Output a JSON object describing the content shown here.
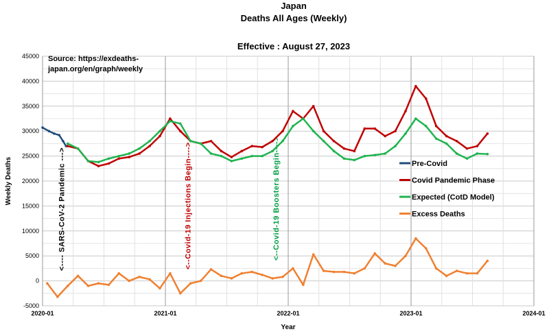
{
  "chart_data": {
    "type": "line",
    "title": "Japan",
    "subtitle": "Deaths All Ages (Weekly)",
    "annotation_effective": "Effective : August 27, 2023",
    "source_line1": "Source: https://exdeaths-",
    "source_line2": "japan.org/en/graph/weekly",
    "xlabel": "Year",
    "ylabel": "Weekly Deaths",
    "xlim": [
      "2020-01",
      "2024-01"
    ],
    "ylim": [
      -5000,
      45000
    ],
    "xticks": [
      "2020-01",
      "2021-01",
      "2022-01",
      "2023-01",
      "2024-01"
    ],
    "yticks": [
      -5000,
      0,
      5000,
      10000,
      15000,
      20000,
      25000,
      30000,
      35000,
      40000,
      45000
    ],
    "grid": true,
    "legend_position": "center-right",
    "event_labels": [
      {
        "text": "<---- SARS-CoV-2 Pandemic --->",
        "date": "2020-03",
        "color": "#000000"
      },
      {
        "text": "<--Covid-19 Injections Begin---->",
        "date": "2021-03",
        "color": "#c00000"
      },
      {
        "text": "<--Covid-19 Boosters Begin---->",
        "date": "2021-12",
        "color": "#00a040"
      }
    ],
    "series": [
      {
        "name": "Pre-Covid",
        "color": "#1f4e79",
        "x": [
          "2020-01-01",
          "2020-01-20",
          "2020-02-05",
          "2020-02-20",
          "2020-03-01",
          "2020-03-10"
        ],
        "values": [
          30700,
          30000,
          29500,
          29200,
          28000,
          27000
        ]
      },
      {
        "name": "Covid Pandemic Phase",
        "color": "#c00000",
        "x": [
          "2020-03",
          "2020-04",
          "2020-05",
          "2020-06",
          "2020-07",
          "2020-08",
          "2020-09",
          "2020-10",
          "2020-11",
          "2020-12",
          "2021-01",
          "2021-02",
          "2021-03",
          "2021-04",
          "2021-05",
          "2021-06",
          "2021-07",
          "2021-08",
          "2021-09",
          "2021-10",
          "2021-11",
          "2021-12",
          "2022-01",
          "2022-02",
          "2022-03",
          "2022-04",
          "2022-05",
          "2022-06",
          "2022-07",
          "2022-08",
          "2022-09",
          "2022-10",
          "2022-11",
          "2022-12",
          "2023-01",
          "2023-02",
          "2023-03",
          "2023-04",
          "2023-05",
          "2023-06",
          "2023-07",
          "2023-08"
        ],
        "values": [
          27000,
          26500,
          24000,
          23000,
          23500,
          24500,
          24800,
          25500,
          27000,
          29000,
          32500,
          30000,
          28000,
          27500,
          28000,
          26000,
          24800,
          26000,
          27000,
          26800,
          28000,
          30000,
          34000,
          32500,
          35000,
          30000,
          28000,
          26500,
          26000,
          30500,
          30500,
          29000,
          30000,
          34000,
          39000,
          36500,
          31000,
          29000,
          28000,
          26500,
          27000,
          29500
        ]
      },
      {
        "name": "Expected (CotD Model)",
        "color": "#1fb450",
        "x": [
          "2020-03",
          "2020-04",
          "2020-05",
          "2020-06",
          "2020-07",
          "2020-08",
          "2020-09",
          "2020-10",
          "2020-11",
          "2020-12",
          "2021-01",
          "2021-02",
          "2021-03",
          "2021-04",
          "2021-05",
          "2021-06",
          "2021-07",
          "2021-08",
          "2021-09",
          "2021-10",
          "2021-11",
          "2021-12",
          "2022-01",
          "2022-02",
          "2022-03",
          "2022-04",
          "2022-05",
          "2022-06",
          "2022-07",
          "2022-08",
          "2022-09",
          "2022-10",
          "2022-11",
          "2022-12",
          "2023-01",
          "2023-02",
          "2023-03",
          "2023-04",
          "2023-05",
          "2023-06",
          "2023-07",
          "2023-08"
        ],
        "values": [
          27500,
          26500,
          24000,
          23800,
          24500,
          25000,
          25500,
          26500,
          28000,
          30000,
          32000,
          31500,
          28000,
          27500,
          25500,
          25000,
          24000,
          24500,
          25000,
          25000,
          26000,
          28000,
          31000,
          32500,
          30000,
          28000,
          26000,
          24500,
          24200,
          25000,
          25200,
          25500,
          27000,
          29500,
          32500,
          31000,
          28500,
          27500,
          25500,
          24500,
          25500,
          25400
        ]
      },
      {
        "name": "Excess Deaths",
        "color": "#f08030",
        "x": [
          "2020-01",
          "2020-02",
          "2020-03",
          "2020-04",
          "2020-05",
          "2020-06",
          "2020-07",
          "2020-08",
          "2020-09",
          "2020-10",
          "2020-11",
          "2020-12",
          "2021-01",
          "2021-02",
          "2021-03",
          "2021-04",
          "2021-05",
          "2021-06",
          "2021-07",
          "2021-08",
          "2021-09",
          "2021-10",
          "2021-11",
          "2021-12",
          "2022-01",
          "2022-02",
          "2022-03",
          "2022-04",
          "2022-05",
          "2022-06",
          "2022-07",
          "2022-08",
          "2022-09",
          "2022-10",
          "2022-11",
          "2022-12",
          "2023-01",
          "2023-02",
          "2023-03",
          "2023-04",
          "2023-05",
          "2023-06",
          "2023-07",
          "2023-08"
        ],
        "values": [
          -500,
          -3200,
          -1000,
          1000,
          -1000,
          -500,
          -800,
          1500,
          0,
          800,
          300,
          -1500,
          1500,
          -2500,
          -500,
          0,
          2300,
          1000,
          500,
          1500,
          1800,
          1200,
          500,
          800,
          2500,
          -800,
          5300,
          2000,
          1800,
          1800,
          1500,
          2500,
          5500,
          3500,
          3000,
          5000,
          8500,
          6500,
          2500,
          1000,
          2000,
          1500,
          1500,
          4000
        ]
      }
    ]
  }
}
